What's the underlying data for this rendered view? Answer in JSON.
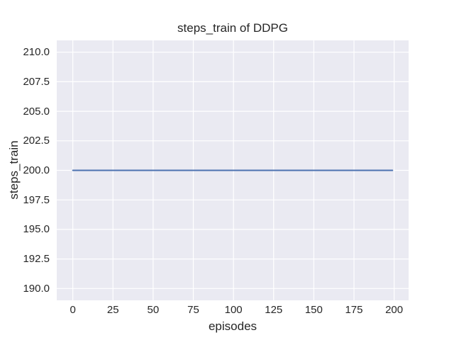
{
  "chart_data": {
    "type": "line",
    "title": "steps_train of DDPG",
    "xlabel": "episodes",
    "ylabel": "steps_train",
    "xlim": [
      -10,
      209
    ],
    "ylim": [
      189,
      211
    ],
    "xticks": [
      0,
      25,
      50,
      75,
      100,
      125,
      150,
      175,
      200
    ],
    "xtick_labels": [
      "0",
      "25",
      "50",
      "75",
      "100",
      "125",
      "150",
      "175",
      "200"
    ],
    "yticks": [
      190.0,
      192.5,
      195.0,
      197.5,
      200.0,
      202.5,
      205.0,
      207.5,
      210.0
    ],
    "ytick_labels": [
      "190.0",
      "192.5",
      "195.0",
      "197.5",
      "200.0",
      "202.5",
      "205.0",
      "207.5",
      "210.0"
    ],
    "grid": true,
    "legend": false,
    "series": [
      {
        "name": "steps_train",
        "x": [
          0,
          199
        ],
        "y": [
          200,
          200
        ],
        "color": "#4C72B0",
        "note": "constant value 200 for every episode from 0 to 199"
      }
    ],
    "colors": {
      "figure_background": "#FFFFFF",
      "plot_background": "#EAEAF2",
      "grid": "#FFFFFF",
      "text": "#262626"
    }
  }
}
